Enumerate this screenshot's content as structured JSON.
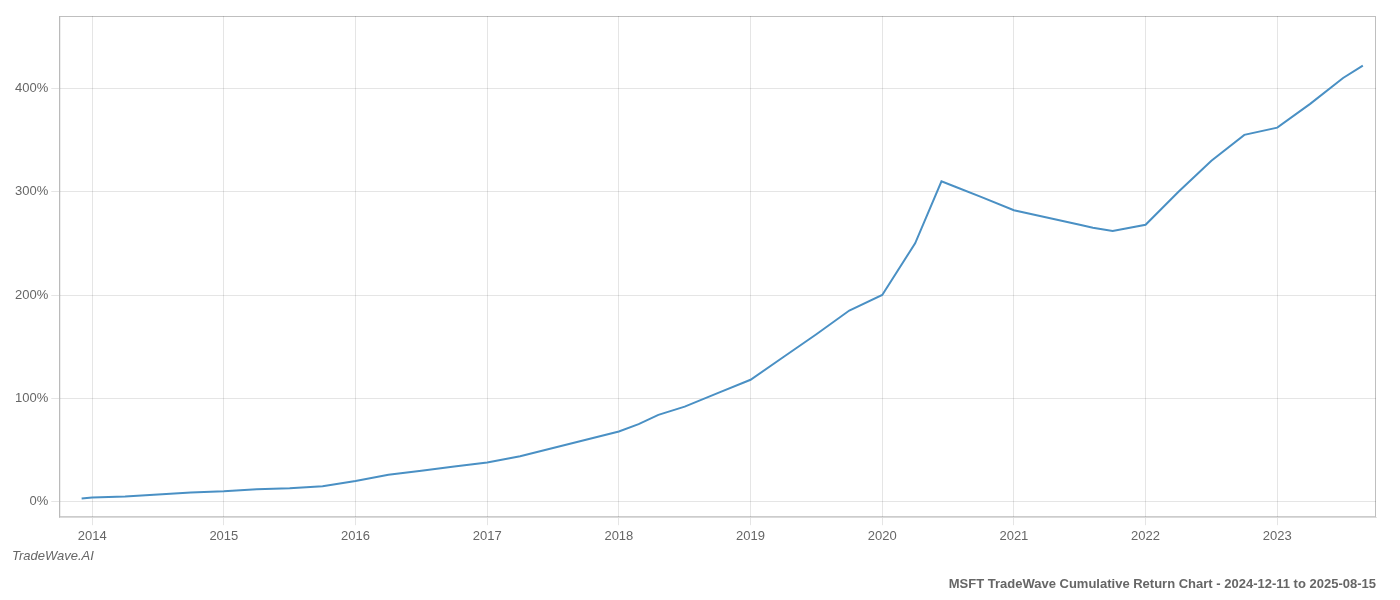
{
  "chart_data": {
    "type": "line",
    "title": "MSFT TradeWave Cumulative Return Chart - 2024-12-11 to 2025-08-15",
    "annotations": [
      "TradeWave.AI"
    ],
    "x": [
      2013.92,
      2014.0,
      2014.25,
      2014.5,
      2014.75,
      2015.0,
      2015.25,
      2015.5,
      2015.75,
      2016.0,
      2016.25,
      2016.5,
      2016.75,
      2017.0,
      2017.25,
      2017.5,
      2017.75,
      2018.0,
      2018.15,
      2018.3,
      2018.5,
      2018.75,
      2019.0,
      2019.25,
      2019.5,
      2019.75,
      2020.0,
      2020.25,
      2020.45,
      2020.55,
      2020.75,
      2021.0,
      2021.25,
      2021.5,
      2021.6,
      2021.75,
      2022.0,
      2022.25,
      2022.5,
      2022.75,
      2023.0,
      2023.25,
      2023.5,
      2023.65
    ],
    "values": [
      3,
      4,
      5,
      7,
      9,
      10,
      12,
      13,
      15,
      20,
      26,
      30,
      34,
      38,
      44,
      52,
      60,
      68,
      75,
      84,
      92,
      105,
      118,
      140,
      162,
      185,
      200,
      250,
      310,
      305,
      295,
      282,
      275,
      268,
      265,
      262,
      268,
      300,
      330,
      355,
      362,
      385,
      410,
      422
    ],
    "color": "#4a90c4",
    "xlim": [
      2013.75,
      2023.75
    ],
    "xticks": [
      2014,
      2015,
      2016,
      2017,
      2018,
      2019,
      2020,
      2021,
      2022,
      2023
    ],
    "ylim": [
      -15,
      470
    ],
    "yticks": [
      {
        "value": 0,
        "label": "0%"
      },
      {
        "value": 100,
        "label": "100%"
      },
      {
        "value": 200,
        "label": "200%"
      },
      {
        "value": 300,
        "label": "300%"
      },
      {
        "value": 400,
        "label": "400%"
      }
    ],
    "grid": true
  }
}
